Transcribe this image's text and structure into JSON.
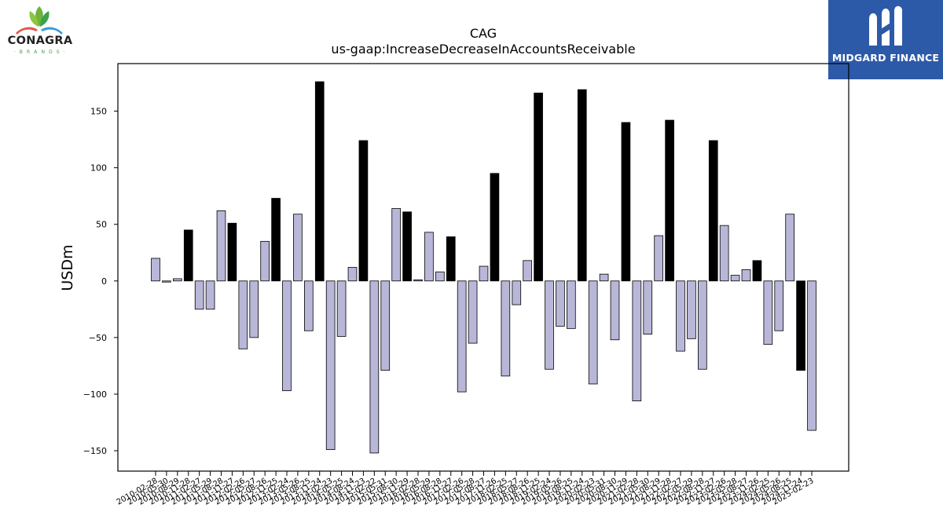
{
  "logos": {
    "left": {
      "text": "CONAGRA",
      "subtext": "· B R A N D S ·",
      "icon": "conagra-leaf-icon"
    },
    "right": {
      "text": "MIDGARD FINANCE",
      "icon": "midgard-m-icon",
      "color": "#2d5aa8"
    }
  },
  "chart_data": {
    "type": "bar",
    "title": "CAG",
    "subtitle": "us-gaap:IncreaseDecreaseInAccountsReceivable",
    "ylabel": "USDm",
    "xlabel": "",
    "ylim": [
      -168,
      192
    ],
    "yticks": [
      -150,
      -100,
      -50,
      0,
      50,
      100,
      150
    ],
    "grid": false,
    "colors": {
      "quarterly": "#b9b7d8",
      "annual": "#000000"
    },
    "categories": [
      "2010-02-28",
      "2010-05-30",
      "2010-08-29",
      "2010-11-28",
      "2011-02-27",
      "2011-05-29",
      "2011-08-28",
      "2011-11-27",
      "2012-02-26",
      "2012-05-27",
      "2012-08-26",
      "2012-11-25",
      "2013-02-24",
      "2013-05-26",
      "2013-08-25",
      "2013-11-24",
      "2014-02-23",
      "2014-05-25",
      "2014-08-24",
      "2014-11-23",
      "2015-02-22",
      "2015-05-31",
      "2015-08-30",
      "2015-11-29",
      "2016-02-28",
      "2016-05-29",
      "2016-08-28",
      "2016-11-27",
      "2017-02-26",
      "2017-05-28",
      "2017-08-27",
      "2017-11-26",
      "2018-02-25",
      "2018-05-27",
      "2018-08-26",
      "2018-11-25",
      "2019-02-24",
      "2019-05-26",
      "2019-08-25",
      "2019-11-24",
      "2020-02-23",
      "2020-05-31",
      "2020-08-30",
      "2020-11-29",
      "2021-02-28",
      "2021-05-30",
      "2021-08-29",
      "2021-11-28",
      "2022-02-27",
      "2022-05-29",
      "2022-08-28",
      "2022-11-27",
      "2023-02-26",
      "2023-05-28",
      "2023-08-27",
      "2023-11-26",
      "2024-02-25",
      "2024-05-26",
      "2024-08-25",
      "2024-11-24",
      "2025-02-23"
    ],
    "values": [
      20,
      -1,
      2,
      45,
      -25,
      -25,
      62,
      51,
      -60,
      -50,
      35,
      73,
      -97,
      59,
      -44,
      176,
      -149,
      -49,
      12,
      124,
      -152,
      -79,
      64,
      61,
      1,
      43,
      8,
      39,
      -98,
      -55,
      13,
      95,
      -84,
      -21,
      18,
      166,
      -78,
      -40,
      -42,
      169,
      -91,
      6,
      -52,
      140,
      -106,
      -47,
      40,
      142,
      -62,
      -51,
      -78,
      124,
      49,
      5,
      10,
      18,
      -56,
      -44,
      59,
      -79,
      -132
    ],
    "annual": [
      false,
      false,
      false,
      true,
      false,
      false,
      false,
      true,
      false,
      false,
      false,
      true,
      false,
      false,
      false,
      true,
      false,
      false,
      false,
      true,
      false,
      false,
      false,
      true,
      false,
      false,
      false,
      true,
      false,
      false,
      false,
      true,
      false,
      false,
      false,
      true,
      false,
      false,
      false,
      true,
      false,
      false,
      false,
      true,
      false,
      false,
      false,
      true,
      false,
      false,
      false,
      true,
      false,
      false,
      false,
      true,
      false,
      false,
      false,
      true,
      false
    ]
  }
}
